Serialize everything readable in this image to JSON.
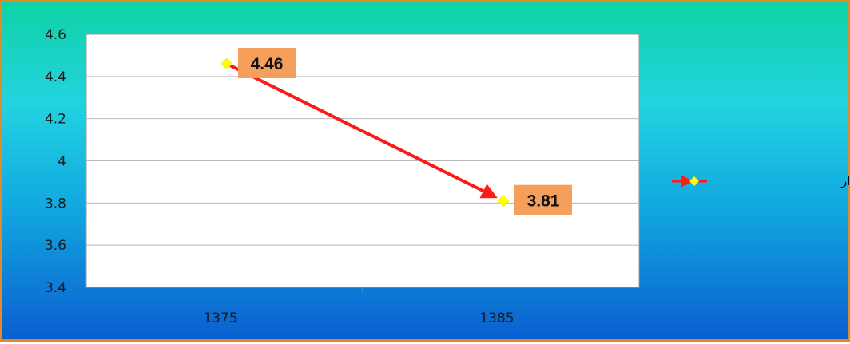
{
  "chart_data": {
    "type": "line",
    "categories": [
      "1375",
      "1385"
    ],
    "series": [
      {
        "name": "تغیر بعد خانوار",
        "values": [
          4.46,
          3.81
        ]
      }
    ],
    "data_labels": [
      "4.46",
      "3.81"
    ],
    "ylim": [
      3.4,
      4.6
    ],
    "y_ticks": [
      4.6,
      4.4,
      4.2,
      4,
      3.8,
      3.6,
      3.4
    ],
    "y_tick_labels": [
      "4.6",
      "4.4",
      "4.2",
      "4",
      "3.8",
      "3.6",
      "3.4"
    ],
    "grid": true,
    "legend_position": "right",
    "colors": {
      "line": "#ff1a1a",
      "marker": "#ffff00",
      "label_box": "#f4a05c",
      "grid": "#b8b8b8",
      "frame_border": "#e08a2a"
    }
  }
}
